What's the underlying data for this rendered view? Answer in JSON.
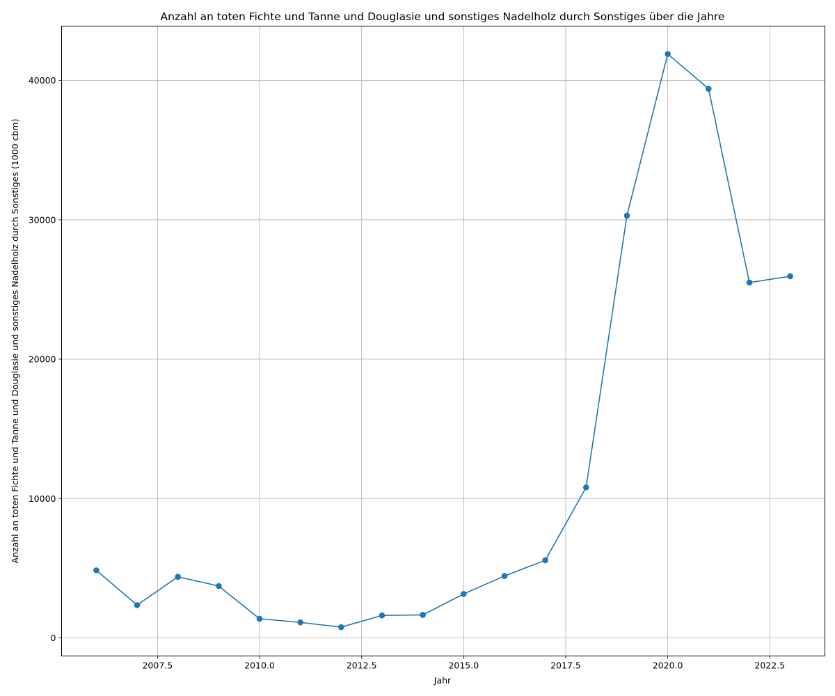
{
  "chart_data": {
    "type": "line",
    "title": "Anzahl an toten Fichte und Tanne und Douglasie und sonstiges Nadelholz durch Sonstiges über die Jahre",
    "xlabel": "Jahr",
    "ylabel": "Anzahl an toten Fichte und Tanne und Douglasie und sonstiges Nadelholz durch Sonstiges (1000 cbm)",
    "xlim": [
      2005.15,
      2023.85
    ],
    "ylim": [
      -1300,
      43900
    ],
    "x_ticks": [
      2007.5,
      2010.0,
      2012.5,
      2015.0,
      2017.5,
      2020.0,
      2022.5
    ],
    "x_tick_labels": [
      "2007.5",
      "2010.0",
      "2012.5",
      "2015.0",
      "2017.5",
      "2020.0",
      "2022.5"
    ],
    "y_ticks": [
      0,
      10000,
      20000,
      30000,
      40000
    ],
    "y_tick_labels": [
      "0",
      "10000",
      "20000",
      "30000",
      "40000"
    ],
    "grid": true,
    "series": [
      {
        "color": "#1f77b4",
        "marker": "circle",
        "x": [
          2006,
          2007,
          2008,
          2009,
          2010,
          2011,
          2012,
          2013,
          2014,
          2015,
          2016,
          2017,
          2018,
          2019,
          2020,
          2021,
          2022,
          2023
        ],
        "values": [
          4850,
          2350,
          4380,
          3720,
          1370,
          1110,
          770,
          1610,
          1650,
          3150,
          4440,
          5570,
          10800,
          30300,
          41900,
          39400,
          25500,
          25950
        ]
      }
    ]
  }
}
